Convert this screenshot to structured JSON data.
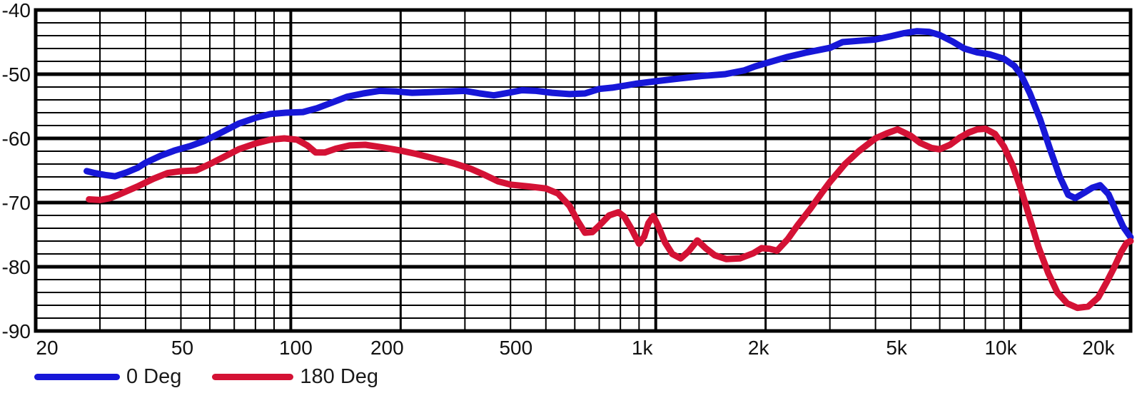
{
  "page": {
    "background": "#ffffff",
    "grid_color": "#000000",
    "text_color": "#111111"
  },
  "chart_data": {
    "type": "line",
    "title": "",
    "x_scale": "log",
    "xlim": [
      20,
      20000
    ],
    "ylim": [
      -90,
      -40
    ],
    "grid": {
      "minor_db_step": 2,
      "major_db_step": 10,
      "log_minor_x_lines": true,
      "color": "#000000"
    },
    "x_ticks": [
      {
        "f": 20,
        "label": "20"
      },
      {
        "f": 50,
        "label": "50"
      },
      {
        "f": 100,
        "label": "100"
      },
      {
        "f": 200,
        "label": "200"
      },
      {
        "f": 500,
        "label": "500"
      },
      {
        "f": 1000,
        "label": "1k"
      },
      {
        "f": 2000,
        "label": "2k"
      },
      {
        "f": 5000,
        "label": "5k"
      },
      {
        "f": 10000,
        "label": "10k"
      },
      {
        "f": 20000,
        "label": "20k"
      }
    ],
    "y_ticks": [
      {
        "db": -40,
        "label": "-40"
      },
      {
        "db": -50,
        "label": "-50"
      },
      {
        "db": -60,
        "label": "-60"
      },
      {
        "db": -70,
        "label": "-70"
      },
      {
        "db": -80,
        "label": "-80"
      },
      {
        "db": -90,
        "label": "-90"
      }
    ],
    "legend_position": "bottom-left",
    "series": [
      {
        "name": "0 Deg",
        "color": "#1717d8",
        "points": [
          [
            27.6,
            -65.1
          ],
          [
            29,
            -65.4
          ],
          [
            31,
            -65.7
          ],
          [
            33,
            -65.9
          ],
          [
            35.5,
            -65.3
          ],
          [
            38,
            -64.6
          ],
          [
            40,
            -63.8
          ],
          [
            44,
            -62.7
          ],
          [
            48,
            -61.9
          ],
          [
            53,
            -61.2
          ],
          [
            58,
            -60.4
          ],
          [
            65,
            -59.0
          ],
          [
            72,
            -57.7
          ],
          [
            80,
            -56.8
          ],
          [
            88,
            -56.2
          ],
          [
            97,
            -56.0
          ],
          [
            108,
            -55.9
          ],
          [
            118,
            -55.3
          ],
          [
            130,
            -54.4
          ],
          [
            143,
            -53.5
          ],
          [
            158,
            -53.0
          ],
          [
            175,
            -52.6
          ],
          [
            195,
            -52.7
          ],
          [
            215,
            -52.9
          ],
          [
            240,
            -52.8
          ],
          [
            270,
            -52.7
          ],
          [
            300,
            -52.6
          ],
          [
            330,
            -53.0
          ],
          [
            360,
            -53.3
          ],
          [
            395,
            -52.9
          ],
          [
            430,
            -52.5
          ],
          [
            470,
            -52.6
          ],
          [
            520,
            -52.9
          ],
          [
            580,
            -53.1
          ],
          [
            640,
            -53.0
          ],
          [
            700,
            -52.3
          ],
          [
            760,
            -52.1
          ],
          [
            820,
            -51.8
          ],
          [
            880,
            -51.5
          ],
          [
            1000,
            -51.1
          ],
          [
            1150,
            -50.7
          ],
          [
            1330,
            -50.3
          ],
          [
            1550,
            -50.0
          ],
          [
            1750,
            -49.4
          ],
          [
            1870,
            -48.8
          ],
          [
            2000,
            -48.3
          ],
          [
            2300,
            -47.3
          ],
          [
            2600,
            -46.6
          ],
          [
            3000,
            -45.9
          ],
          [
            3250,
            -45.0
          ],
          [
            3600,
            -44.8
          ],
          [
            4000,
            -44.6
          ],
          [
            4400,
            -44.1
          ],
          [
            4800,
            -43.6
          ],
          [
            5200,
            -43.3
          ],
          [
            5600,
            -43.4
          ],
          [
            6000,
            -43.9
          ],
          [
            6500,
            -44.9
          ],
          [
            7000,
            -46.0
          ],
          [
            7600,
            -46.6
          ],
          [
            8200,
            -46.9
          ],
          [
            9000,
            -47.6
          ],
          [
            9600,
            -48.7
          ],
          [
            10000,
            -50.0
          ],
          [
            10600,
            -53.0
          ],
          [
            11300,
            -57.0
          ],
          [
            12000,
            -61.5
          ],
          [
            12800,
            -66.0
          ],
          [
            13500,
            -68.8
          ],
          [
            14100,
            -69.3
          ],
          [
            14900,
            -68.5
          ],
          [
            15700,
            -67.7
          ],
          [
            16500,
            -67.3
          ],
          [
            17400,
            -68.7
          ],
          [
            18200,
            -71.2
          ],
          [
            19100,
            -73.8
          ],
          [
            20000,
            -75.4
          ]
        ]
      },
      {
        "name": "180 Deg",
        "color": "#d41235",
        "points": [
          [
            28,
            -69.5
          ],
          [
            30,
            -69.6
          ],
          [
            32,
            -69.3
          ],
          [
            34,
            -68.7
          ],
          [
            38,
            -67.5
          ],
          [
            42,
            -66.3
          ],
          [
            46,
            -65.4
          ],
          [
            50,
            -65.1
          ],
          [
            55,
            -65.0
          ],
          [
            60,
            -64.0
          ],
          [
            66,
            -62.8
          ],
          [
            72,
            -61.7
          ],
          [
            80,
            -60.8
          ],
          [
            88,
            -60.2
          ],
          [
            96,
            -60.0
          ],
          [
            104,
            -60.2
          ],
          [
            111,
            -61.1
          ],
          [
            117,
            -62.2
          ],
          [
            124,
            -62.2
          ],
          [
            133,
            -61.6
          ],
          [
            145,
            -61.1
          ],
          [
            160,
            -61.0
          ],
          [
            178,
            -61.4
          ],
          [
            200,
            -61.9
          ],
          [
            220,
            -62.4
          ],
          [
            250,
            -63.2
          ],
          [
            280,
            -63.9
          ],
          [
            310,
            -64.7
          ],
          [
            340,
            -65.7
          ],
          [
            370,
            -66.7
          ],
          [
            400,
            -67.2
          ],
          [
            450,
            -67.5
          ],
          [
            500,
            -67.8
          ],
          [
            540,
            -68.6
          ],
          [
            580,
            -70.5
          ],
          [
            610,
            -72.8
          ],
          [
            640,
            -74.7
          ],
          [
            670,
            -74.6
          ],
          [
            700,
            -73.6
          ],
          [
            745,
            -72.0
          ],
          [
            790,
            -71.5
          ],
          [
            820,
            -72.2
          ],
          [
            860,
            -74.2
          ],
          [
            900,
            -76.4
          ],
          [
            930,
            -75.3
          ],
          [
            955,
            -73.2
          ],
          [
            985,
            -72.1
          ],
          [
            1015,
            -73.6
          ],
          [
            1060,
            -76.2
          ],
          [
            1110,
            -78.0
          ],
          [
            1170,
            -78.7
          ],
          [
            1230,
            -77.6
          ],
          [
            1300,
            -75.9
          ],
          [
            1370,
            -77.1
          ],
          [
            1450,
            -78.2
          ],
          [
            1560,
            -78.8
          ],
          [
            1700,
            -78.7
          ],
          [
            1850,
            -77.9
          ],
          [
            1950,
            -77.1
          ],
          [
            2050,
            -77.2
          ],
          [
            2150,
            -77.5
          ],
          [
            2300,
            -75.7
          ],
          [
            2450,
            -73.5
          ],
          [
            2650,
            -71.0
          ],
          [
            2850,
            -68.5
          ],
          [
            3000,
            -66.8
          ],
          [
            3300,
            -64.0
          ],
          [
            3600,
            -62.0
          ],
          [
            4000,
            -60.0
          ],
          [
            4300,
            -59.2
          ],
          [
            4600,
            -58.6
          ],
          [
            5000,
            -59.6
          ],
          [
            5300,
            -60.7
          ],
          [
            5700,
            -61.5
          ],
          [
            6000,
            -61.7
          ],
          [
            6400,
            -61.0
          ],
          [
            6800,
            -59.9
          ],
          [
            7200,
            -59.1
          ],
          [
            7600,
            -58.6
          ],
          [
            8000,
            -58.5
          ],
          [
            8500,
            -59.3
          ],
          [
            9000,
            -61.3
          ],
          [
            9500,
            -64.2
          ],
          [
            10000,
            -67.8
          ],
          [
            10600,
            -72.5
          ],
          [
            11200,
            -77.0
          ],
          [
            11900,
            -81.0
          ],
          [
            12600,
            -84.0
          ],
          [
            13400,
            -85.7
          ],
          [
            14300,
            -86.4
          ],
          [
            15300,
            -86.2
          ],
          [
            16300,
            -84.8
          ],
          [
            17200,
            -82.4
          ],
          [
            18000,
            -80.2
          ],
          [
            18900,
            -77.6
          ],
          [
            19500,
            -76.3
          ],
          [
            20000,
            -76.0
          ]
        ]
      }
    ]
  }
}
